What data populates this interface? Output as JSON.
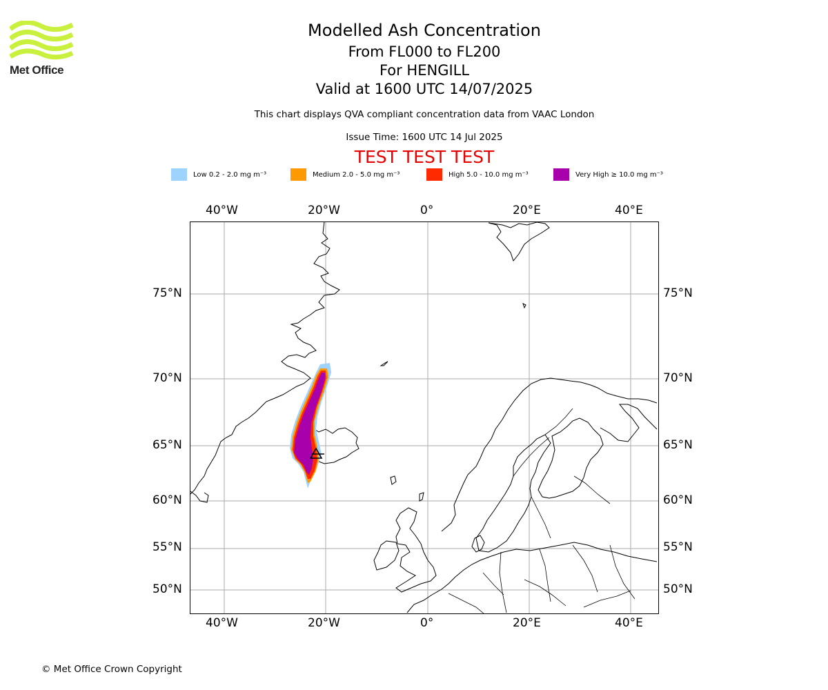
{
  "logo": {
    "text": "Met Office",
    "color": "#c8f03c"
  },
  "header": {
    "title": "Modelled Ash Concentration",
    "levels": "From FL000 to FL200",
    "volcano": "For HENGILL",
    "valid": "Valid at 1600 UTC 14/07/2025",
    "description": "This chart displays QVA compliant concentration data from VAAC London",
    "issue_time": "Issue Time: 1600 UTC 14 Jul 2025",
    "test_banner": "TEST TEST TEST"
  },
  "legend": [
    {
      "label": "Low 0.2 - 2.0 mg m⁻³",
      "color": "#9fd3ff"
    },
    {
      "label": "Medium 2.0 - 5.0 mg m⁻³",
      "color": "#ff9900"
    },
    {
      "label": "High 5.0 - 10.0 mg m⁻³",
      "color": "#ff2a00"
    },
    {
      "label": "Very High ≥ 10.0 mg m⁻³",
      "color": "#a800aa"
    }
  ],
  "map": {
    "longitude_labels": [
      "40°W",
      "20°W",
      "0°",
      "20°E",
      "40°E"
    ],
    "latitude_labels": [
      "75°N",
      "70°N",
      "65°N",
      "60°N",
      "55°N",
      "50°N"
    ],
    "gridline_color": "#aaaaaa",
    "coastline_color": "#000000"
  },
  "footer": {
    "copyright": "© Met Office Crown Copyright"
  }
}
